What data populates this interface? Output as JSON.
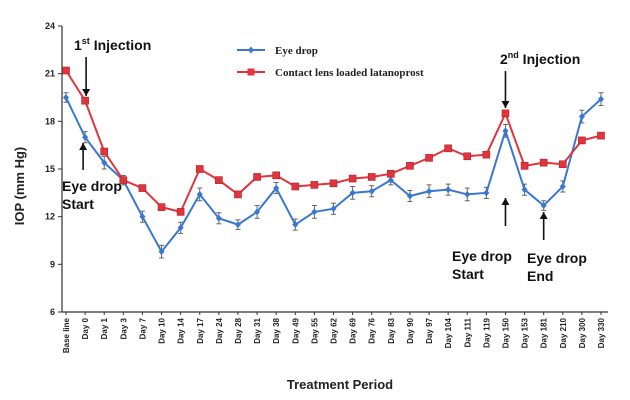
{
  "chart_data": {
    "type": "line",
    "title": "",
    "xlabel": "Treatment Period",
    "ylabel": "IOP (mm Hg)",
    "ylim": [
      6,
      24
    ],
    "yticks": [
      "6",
      "9",
      "12",
      "15",
      "18",
      "21",
      "24"
    ],
    "categories": [
      "Base line",
      "Day 0",
      "Day 1",
      "Day 3",
      "Day 7",
      "Day 10",
      "Day 14",
      "Day 17",
      "Day 24",
      "Day 28",
      "Day 31",
      "Day 38",
      "Day 49",
      "Day 55",
      "Day 62",
      "Day 69",
      "Day 76",
      "Day 83",
      "Day 90",
      "Day 97",
      "Day 104",
      "Day 111",
      "Day 119",
      "Day 150",
      "Day 153",
      "Day 181",
      "Day 210",
      "Day 300",
      "Day 330"
    ],
    "series": [
      {
        "name": "Eye drop",
        "color": "#3a78d0",
        "marker": "diamond",
        "values": [
          19.5,
          17.0,
          15.4,
          14.3,
          12.0,
          9.8,
          11.3,
          13.4,
          11.9,
          11.5,
          12.3,
          13.8,
          11.5,
          12.3,
          12.5,
          13.5,
          13.6,
          14.3,
          13.3,
          13.6,
          13.7,
          13.4,
          13.5,
          17.4,
          13.7,
          12.7,
          13.9,
          18.3,
          19.4
        ],
        "errors": [
          0.3,
          0.35,
          0.4,
          0.3,
          0.35,
          0.4,
          0.35,
          0.4,
          0.35,
          0.3,
          0.4,
          0.35,
          0.35,
          0.4,
          0.35,
          0.4,
          0.35,
          0.3,
          0.35,
          0.4,
          0.35,
          0.4,
          0.35,
          0.4,
          0.35,
          0.3,
          0.35,
          0.4,
          0.4
        ]
      },
      {
        "name": "Contact lens loaded latanoprost",
        "color": "#e0353c",
        "marker": "square",
        "values": [
          21.2,
          19.3,
          16.1,
          14.3,
          13.8,
          12.6,
          12.3,
          15.0,
          14.3,
          13.4,
          14.5,
          14.6,
          13.9,
          14.0,
          14.1,
          14.4,
          14.5,
          14.7,
          15.2,
          15.7,
          16.3,
          15.8,
          15.9,
          18.5,
          15.2,
          15.4,
          15.3,
          16.8,
          17.1
        ]
      }
    ],
    "legend_position": "top-center",
    "grid": false,
    "annotations": [
      {
        "text": "1",
        "sup": "st",
        "rest": " Injection",
        "category": "Day 0",
        "arrow": "down"
      },
      {
        "text": "Eye drop",
        "line2": "Start",
        "category": "Day 0",
        "arrow": "up"
      },
      {
        "text": "2",
        "sup": "nd",
        "rest": " Injection",
        "category": "Day 150",
        "arrow": "down"
      },
      {
        "text": "Eye drop",
        "line2": "Start",
        "category": "Day 150",
        "arrow": "up"
      },
      {
        "text": "Eye drop",
        "line2": "End",
        "category": "Day 181",
        "arrow": "up"
      }
    ]
  }
}
